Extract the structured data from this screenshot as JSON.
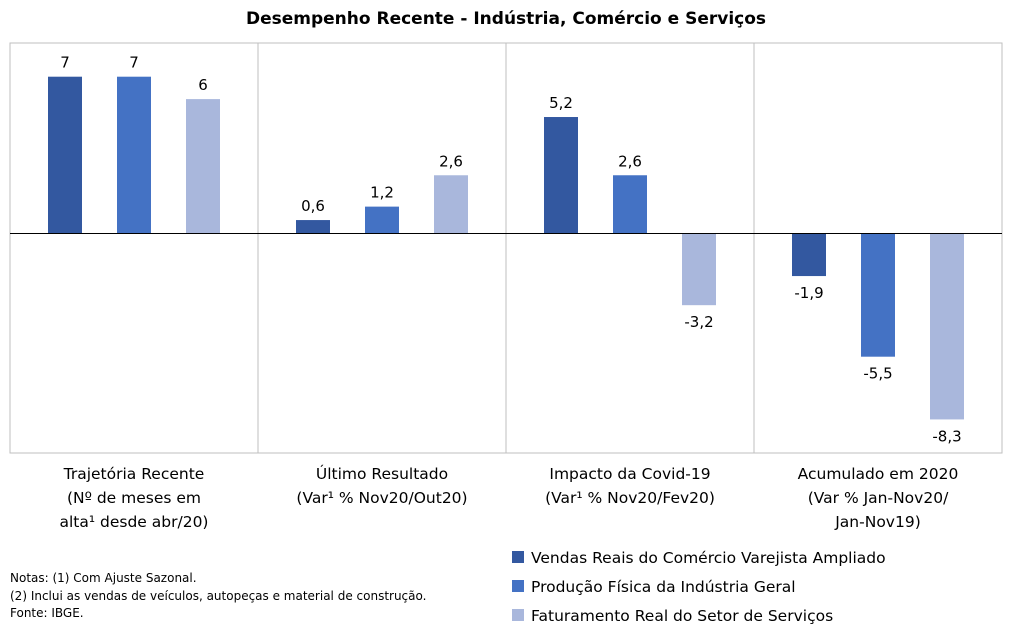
{
  "chart_data": {
    "type": "bar",
    "title": "Desempenho Recente - Indústria, Comércio e Serviços",
    "categories": [
      [
        "Trajetória Recente",
        "(Nº de meses em",
        "alta¹ desde abr/20)"
      ],
      [
        "Último Resultado",
        "(Var¹ % Nov20/Out20)"
      ],
      [
        "Impacto da Covid-19",
        "(Var¹ % Nov20/Fev20)"
      ],
      [
        "Acumulado em 2020",
        "(Var % Jan-Nov20/",
        "Jan-Nov19)"
      ]
    ],
    "series": [
      {
        "name": "Vendas Reais do Comércio Varejista Ampliado",
        "color": "#3358A0",
        "values": [
          7,
          0.6,
          5.2,
          -1.9
        ],
        "labels": [
          "7",
          "0,6",
          "5,2",
          "-1,9"
        ]
      },
      {
        "name": "Produção Física da Indústria Geral",
        "color": "#4472C4",
        "values": [
          7,
          1.2,
          2.6,
          -5.5
        ],
        "labels": [
          "7",
          "1,2",
          "2,6",
          "-5,5"
        ]
      },
      {
        "name": "Faturamento Real do Setor de Serviços",
        "color": "#A9B7DC",
        "values": [
          6,
          2.6,
          -3.2,
          -8.3
        ],
        "labels": [
          "6",
          "2,6",
          "-3,2",
          "-8,3"
        ]
      }
    ],
    "ylim": [
      -9.6,
      8.7
    ],
    "grid": false,
    "legend_position": "bottom-right"
  },
  "notes": [
    "Notas: (1) Com Ajuste Sazonal.",
    "(2) Inclui as vendas de veículos, autopeças e material de construção.",
    "Fonte: IBGE."
  ]
}
